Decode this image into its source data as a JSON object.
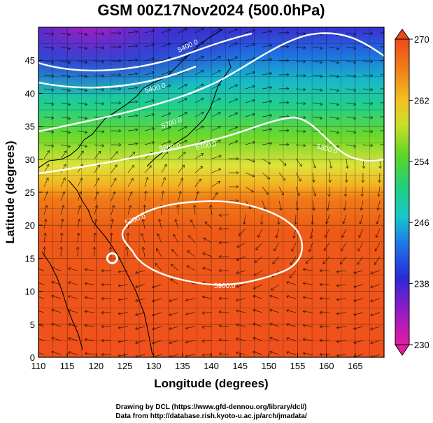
{
  "title": "GSM 00Z17Nov2024 (500.0hPa)",
  "x_axis": {
    "label": "Longitude (degrees)",
    "ticks": [
      "110",
      "115",
      "120",
      "125",
      "130",
      "135",
      "140",
      "145",
      "150",
      "155",
      "160",
      "165"
    ],
    "range": [
      110,
      170
    ]
  },
  "y_axis": {
    "label": "Latitude  (degrees)",
    "ticks": [
      "0",
      "5",
      "10",
      "15",
      "20",
      "25",
      "30",
      "35",
      "40",
      "45"
    ],
    "range": [
      0,
      50
    ]
  },
  "colorbar": {
    "ticks": [
      "230",
      "238",
      "246",
      "254",
      "262",
      "270"
    ],
    "range": [
      230,
      270
    ]
  },
  "contour_labels": [
    "5400.0",
    "5400.0",
    "5700.0",
    "5700.0",
    "5800.0",
    "5800.0",
    "5900.0",
    "5900.0"
  ],
  "credits": [
    "Drawing by DCL (https://www.gfd-dennou.org/library/dcl/)",
    "Data from http://database.rish.kyoto-u.ac.jp/arch/jmadata/"
  ],
  "marker": {
    "type": "circle",
    "lon": 122.8,
    "lat": 15.0,
    "color": "#ffffff"
  }
}
